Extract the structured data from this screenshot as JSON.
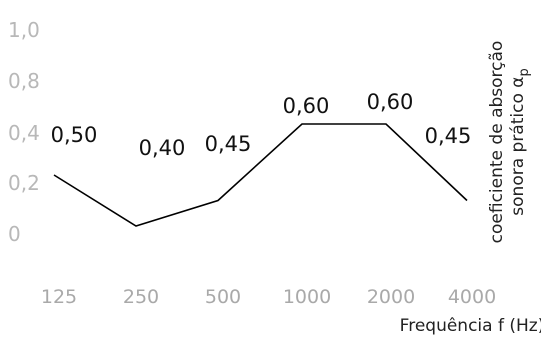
{
  "chart_data": {
    "type": "line",
    "title": "",
    "categories": [
      "125",
      "250",
      "500",
      "1000",
      "2000",
      "4000"
    ],
    "series": [
      {
        "values": [
          0.5,
          0.4,
          0.45,
          0.6,
          0.6,
          0.45
        ]
      }
    ],
    "data_labels": [
      "0,50",
      "0,40",
      "0,45",
      "0,60",
      "0,60",
      "0,45"
    ],
    "y_ticks": [
      "1,0",
      "0,8",
      "0,4",
      "0,2",
      "0"
    ],
    "xlabel": "Frequência f (Hz)",
    "ylabel_line1": "coeficiente de absorção",
    "ylabel_line2": "sonora prático α",
    "ylabel_subscript": "p",
    "grid": false,
    "line_color": "#000000",
    "tick_color": "#a9a9a9"
  }
}
